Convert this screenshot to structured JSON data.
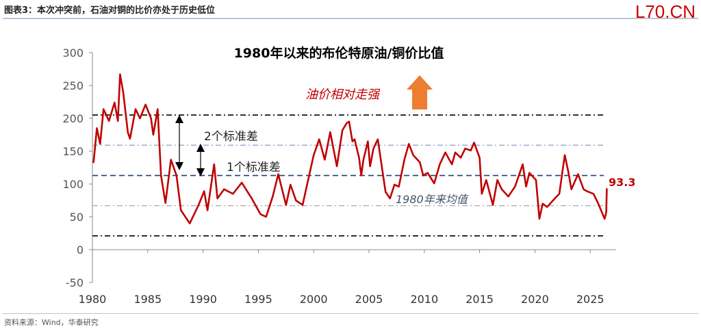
{
  "header": {
    "figure_title": "图表3：本次冲突前，石油对铜的比价亦处于历史低位",
    "watermark": "L70.CN"
  },
  "footer": {
    "source": "资料来源：Wind，华泰研究"
  },
  "colors": {
    "series": "#c00000",
    "arrow": "#ed7d31",
    "line_2sd": "#000000",
    "line_1sd": "#1f3f6b",
    "line_mean": "#aaaaaa"
  },
  "chart_data": {
    "type": "line",
    "title": "1980年以来的布伦特原油/铜价比值",
    "xlabel": "",
    "ylabel": "",
    "ylim": [
      -50,
      300
    ],
    "xlim": [
      1980,
      2027
    ],
    "yticks": [
      "300",
      "250",
      "200",
      "150",
      "100",
      "50",
      "0",
      "-50"
    ],
    "ytick_values": [
      300,
      250,
      200,
      150,
      100,
      50,
      0,
      -50
    ],
    "xticks": [
      "1980",
      "1985",
      "1990",
      "1995",
      "2000",
      "2005",
      "2010",
      "2015",
      "2020",
      "2025"
    ],
    "xtick_values": [
      1980,
      1985,
      1990,
      1995,
      2000,
      2005,
      2010,
      2015,
      2020,
      2025
    ],
    "series": [
      {
        "name": "布伦特原油/铜价比值",
        "x": [
          1980.1,
          1980.4,
          1980.7,
          1981,
          1981.5,
          1982,
          1982.3,
          1982.5,
          1982.8,
          1983.2,
          1983.4,
          1983.9,
          1984.3,
          1984.8,
          1985.3,
          1985.5,
          1985.9,
          1986.2,
          1986.6,
          1987.1,
          1987.6,
          1988,
          1988.8,
          1989.6,
          1990.1,
          1990.4,
          1991,
          1991.3,
          1991.9,
          1992.7,
          1993.5,
          1994.4,
          1995.2,
          1995.7,
          1996.3,
          1996.8,
          1997.5,
          1997.9,
          1998.4,
          1999,
          1999.5,
          2000,
          2000.5,
          2001,
          2001.5,
          2002.1,
          2002.6,
          2003,
          2003.2,
          2003.5,
          2003.7,
          2004.1,
          2004.3,
          2004.5,
          2004.9,
          2005.1,
          2005.4,
          2005.8,
          2006.1,
          2006.5,
          2006.9,
          2007.3,
          2007.7,
          2008.2,
          2008.6,
          2009,
          2009.6,
          2009.9,
          2010.3,
          2010.9,
          2011.4,
          2011.9,
          2012.5,
          2012.8,
          2013.3,
          2013.7,
          2014.2,
          2014.5,
          2015,
          2015.2,
          2015.6,
          2016.2,
          2016.6,
          2017,
          2017.6,
          2018.2,
          2018.9,
          2019.2,
          2019.5,
          2020.1,
          2020.4,
          2020.7,
          2021.1,
          2021.8,
          2022.2,
          2022.7,
          2023,
          2023.3,
          2023.9,
          2024.4,
          2024.7,
          2025.3,
          2025.7,
          2026.3,
          2026.45,
          2026.5
        ],
        "values": [
          132,
          185,
          161,
          214,
          196,
          224,
          196,
          267,
          238,
          179,
          169,
          214,
          200,
          221,
          200,
          175,
          214,
          113,
          71,
          137,
          113,
          60,
          40,
          68,
          89,
          60,
          130,
          78,
          92,
          85,
          102,
          78,
          54,
          50,
          81,
          115,
          68,
          99,
          75,
          68,
          106,
          144,
          168,
          137,
          179,
          127,
          182,
          193,
          195,
          165,
          168,
          140,
          113,
          137,
          165,
          127,
          154,
          168,
          133,
          88,
          78,
          99,
          96,
          137,
          161,
          144,
          133,
          113,
          117,
          101,
          130,
          148,
          130,
          148,
          140,
          154,
          151,
          163,
          140,
          85,
          106,
          68,
          106,
          92,
          81,
          96,
          130,
          96,
          117,
          106,
          47,
          70,
          65,
          78,
          85,
          144,
          120,
          92,
          115,
          92,
          89,
          85,
          71,
          47,
          57,
          93.3
        ]
      }
    ],
    "reference_lines": [
      {
        "label": "",
        "value": 205
      },
      {
        "label": "",
        "value": 159
      },
      {
        "label": "",
        "value": 113
      },
      {
        "label": "1980年来均值",
        "value": 67
      },
      {
        "label": "",
        "value": 21
      }
    ],
    "annotations": {
      "strong_oil": "油价相对走强",
      "two_sd": "2个标准差",
      "one_sd": "1个标准差",
      "mean": "1980年来均值",
      "last_value": "93.3"
    },
    "grid": false,
    "legend": "none"
  }
}
